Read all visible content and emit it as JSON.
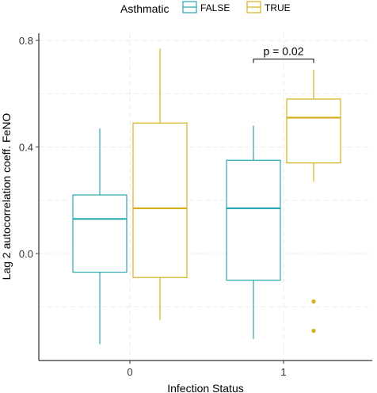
{
  "chart_data": {
    "type": "boxplot",
    "xlabel": "Infection Status",
    "ylabel": "Lag 2 autocorrelation coeff. FeNO",
    "categories": [
      "0",
      "1"
    ],
    "ylim": [
      -0.41,
      0.82
    ],
    "yticks": [
      "0.0",
      "0.4",
      "0.8"
    ],
    "ytick_values": [
      0.0,
      0.4,
      0.8
    ],
    "grid": true,
    "legend": {
      "title": "Asthmatic",
      "position": "top",
      "entries": [
        "FALSE",
        "TRUE"
      ]
    },
    "colors": {
      "FALSE": "#2aa7b0",
      "TRUE": "#d4b21f"
    },
    "series": [
      {
        "name": "FALSE",
        "boxes": [
          {
            "category": "0",
            "whisker_low": -0.34,
            "q1": -0.07,
            "median": 0.13,
            "q3": 0.22,
            "whisker_high": 0.47,
            "outliers": []
          },
          {
            "category": "1",
            "whisker_low": -0.32,
            "q1": -0.1,
            "median": 0.17,
            "q3": 0.35,
            "whisker_high": 0.48,
            "outliers": []
          }
        ]
      },
      {
        "name": "TRUE",
        "boxes": [
          {
            "category": "0",
            "whisker_low": -0.25,
            "q1": -0.09,
            "median": 0.17,
            "q3": 0.49,
            "whisker_high": 0.77,
            "outliers": []
          },
          {
            "category": "1",
            "whisker_low": 0.27,
            "q1": 0.34,
            "median": 0.51,
            "q3": 0.58,
            "whisker_high": 0.69,
            "outliers": [
              -0.18,
              -0.29
            ]
          }
        ]
      }
    ],
    "annotations": [
      {
        "text": "p = 0.02",
        "category": "1",
        "y": 0.73
      }
    ]
  }
}
